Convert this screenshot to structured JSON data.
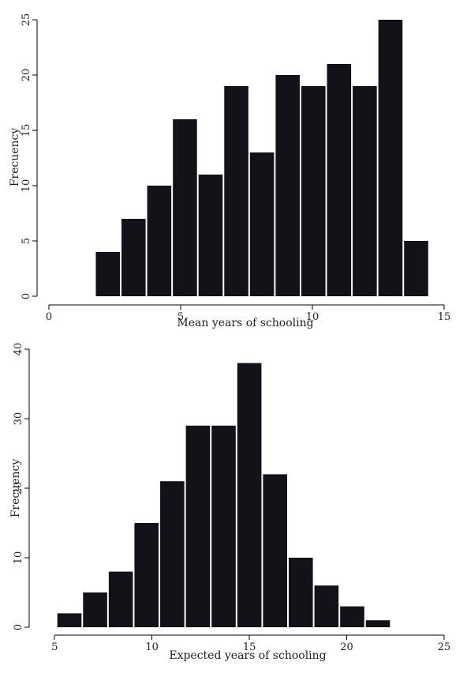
{
  "chart_data": [
    {
      "type": "bar",
      "title": "",
      "xlabel": "Mean years of schooling",
      "ylabel": "Frecuency",
      "xlim": [
        0,
        15
      ],
      "ylim": [
        0,
        25
      ],
      "xticks": [
        0,
        5,
        10,
        15
      ],
      "yticks": [
        0,
        5,
        10,
        15,
        20,
        25
      ],
      "bin_width": 0.975,
      "bins": [
        {
          "start": 1.75,
          "count": 4
        },
        {
          "start": 2.725,
          "count": 7
        },
        {
          "start": 3.7,
          "count": 10
        },
        {
          "start": 4.675,
          "count": 16
        },
        {
          "start": 5.65,
          "count": 11
        },
        {
          "start": 6.625,
          "count": 19
        },
        {
          "start": 7.6,
          "count": 13
        },
        {
          "start": 8.575,
          "count": 20
        },
        {
          "start": 9.55,
          "count": 19
        },
        {
          "start": 10.525,
          "count": 21
        },
        {
          "start": 11.5,
          "count": 19
        },
        {
          "start": 12.475,
          "count": 25
        },
        {
          "start": 13.45,
          "count": 5
        }
      ],
      "grid": false,
      "bar_color": "#121219"
    },
    {
      "type": "bar",
      "title": "",
      "xlabel": "Expected years of schooling",
      "ylabel": "Frecuency",
      "xlim": [
        4.1,
        25
      ],
      "ylim": [
        0,
        40
      ],
      "xticks": [
        5,
        10,
        15,
        20,
        25
      ],
      "yticks": [
        0,
        10,
        20,
        30,
        40
      ],
      "bin_width": 1.32,
      "bins": [
        {
          "start": 5.1,
          "count": 2
        },
        {
          "start": 6.42,
          "count": 5
        },
        {
          "start": 7.74,
          "count": 8
        },
        {
          "start": 9.06,
          "count": 15
        },
        {
          "start": 10.38,
          "count": 21
        },
        {
          "start": 11.7,
          "count": 29
        },
        {
          "start": 13.02,
          "count": 29
        },
        {
          "start": 14.34,
          "count": 38
        },
        {
          "start": 15.66,
          "count": 22
        },
        {
          "start": 16.98,
          "count": 10
        },
        {
          "start": 18.3,
          "count": 6
        },
        {
          "start": 19.62,
          "count": 3
        },
        {
          "start": 20.94,
          "count": 1
        }
      ],
      "grid": false,
      "bar_color": "#121219"
    }
  ]
}
